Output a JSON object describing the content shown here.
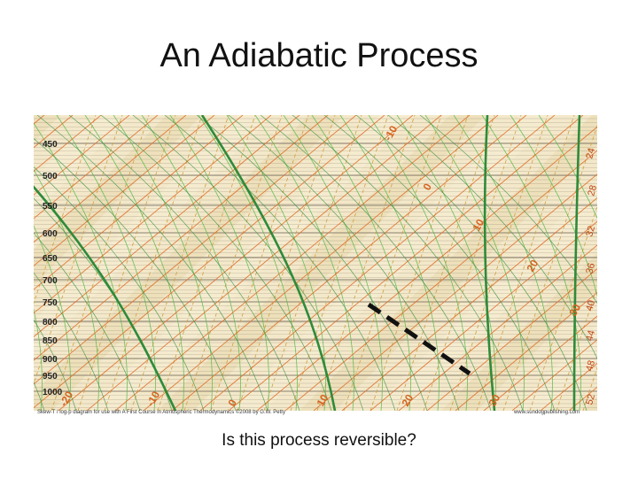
{
  "slide": {
    "title": "An Adiabatic Process",
    "caption": "Is this process reversible?"
  },
  "diagram": {
    "pressure_labels": [
      "450",
      "500",
      "550",
      "600",
      "650",
      "700",
      "750",
      "800",
      "850",
      "900",
      "950",
      "1000"
    ],
    "isotherm_labels": [
      "-10",
      "0",
      "10",
      "20",
      "30"
    ],
    "bottom_temperature_labels": [
      "-20",
      "-10",
      "0",
      "10",
      "20",
      "30"
    ],
    "mixing_ratio_labels": [
      "24",
      "28",
      "32",
      "36",
      "40",
      "44",
      "48",
      "52"
    ],
    "footer_left": "Skew-T / log-p diagram  for use with  A First Course in Atmospheric Thermodynamics     ©2008 by G.W. Petty",
    "footer_right": "www.sundogpublishing.com",
    "colors": {
      "background": "#f3e8c9",
      "isobar": "#8a8070",
      "isotherm": "#e06a24",
      "dry_adiabat": "#2e8b3a",
      "moist_adiabat": "#54b848",
      "mixing_ratio": "#d0a040",
      "process": "#111111"
    }
  }
}
